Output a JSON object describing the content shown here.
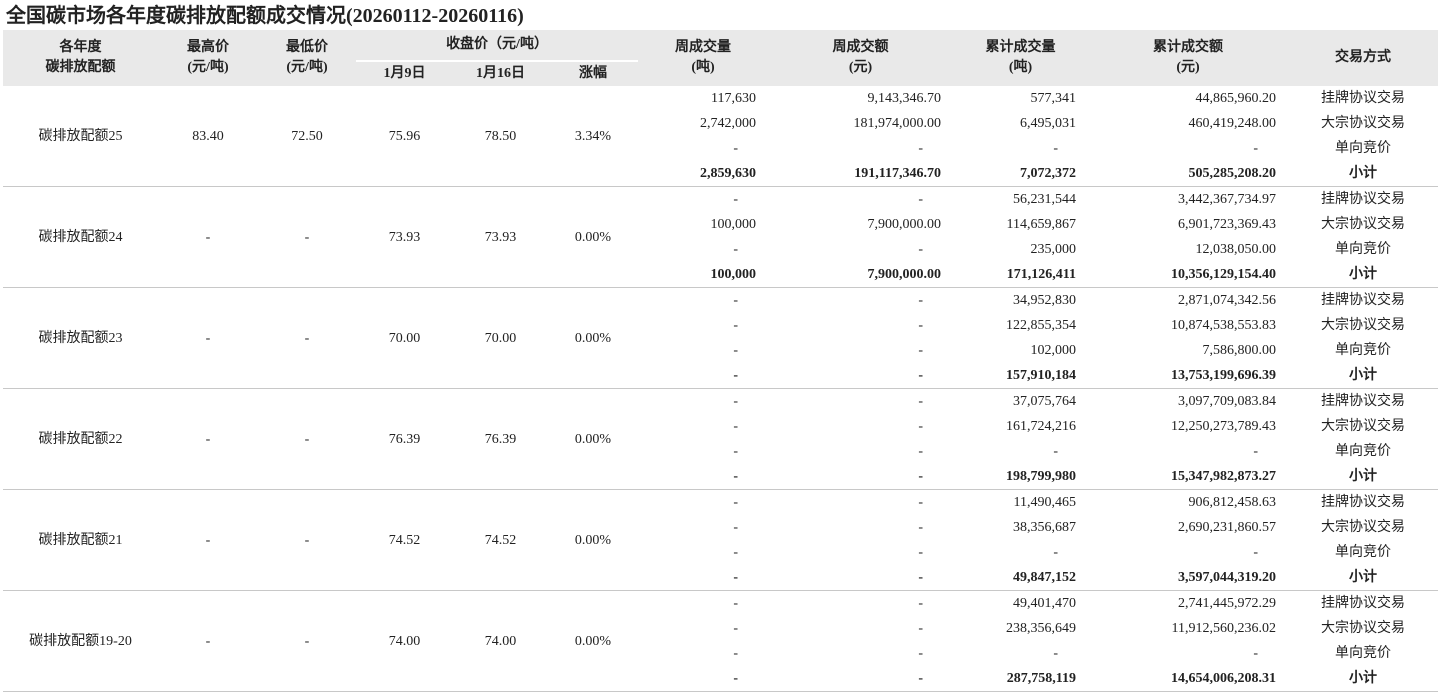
{
  "title": "全国碳市场各年度碳排放配额成交情况(20260112-20260116)",
  "table": {
    "header": {
      "year": [
        "各年度",
        "碳排放配额"
      ],
      "high": [
        "最高价",
        "(元/吨)"
      ],
      "low": [
        "最低价",
        "(元/吨)"
      ],
      "close": "收盘价（元/吨）",
      "close_sub": [
        "1月9日",
        "1月16日",
        "涨幅"
      ],
      "week_volume": [
        "周成交量",
        "(吨)"
      ],
      "week_amount": [
        "周成交额",
        "(元)"
      ],
      "cum_volume": [
        "累计成交量",
        "(吨)"
      ],
      "cum_amount": [
        "累计成交额",
        "(元)"
      ],
      "method": "交易方式"
    },
    "groups": [
      {
        "name": "碳排放配额25",
        "high": "83.40",
        "low": "72.50",
        "close_jan9": "75.96",
        "close_jan16": "78.50",
        "change": "3.34%",
        "rows": [
          [
            "117,630",
            "9,143,346.70",
            "577,341",
            "44,865,960.20",
            "挂牌协议交易"
          ],
          [
            "2,742,000",
            "181,974,000.00",
            "6,495,031",
            "460,419,248.00",
            "大宗协议交易"
          ],
          [
            "-",
            "-",
            "-",
            "-",
            "单向竞价"
          ],
          [
            "2,859,630",
            "191,117,346.70",
            "7,072,372",
            "505,285,208.20",
            "小计"
          ]
        ]
      },
      {
        "name": "碳排放配额24",
        "high": "-",
        "low": "-",
        "close_jan9": "73.93",
        "close_jan16": "73.93",
        "change": "0.00%",
        "rows": [
          [
            "-",
            "-",
            "56,231,544",
            "3,442,367,734.97",
            "挂牌协议交易"
          ],
          [
            "100,000",
            "7,900,000.00",
            "114,659,867",
            "6,901,723,369.43",
            "大宗协议交易"
          ],
          [
            "-",
            "-",
            "235,000",
            "12,038,050.00",
            "单向竞价"
          ],
          [
            "100,000",
            "7,900,000.00",
            "171,126,411",
            "10,356,129,154.40",
            "小计"
          ]
        ]
      },
      {
        "name": "碳排放配额23",
        "high": "-",
        "low": "-",
        "close_jan9": "70.00",
        "close_jan16": "70.00",
        "change": "0.00%",
        "rows": [
          [
            "-",
            "-",
            "34,952,830",
            "2,871,074,342.56",
            "挂牌协议交易"
          ],
          [
            "-",
            "-",
            "122,855,354",
            "10,874,538,553.83",
            "大宗协议交易"
          ],
          [
            "-",
            "-",
            "102,000",
            "7,586,800.00",
            "单向竞价"
          ],
          [
            "-",
            "-",
            "157,910,184",
            "13,753,199,696.39",
            "小计"
          ]
        ]
      },
      {
        "name": "碳排放配额22",
        "high": "-",
        "low": "-",
        "close_jan9": "76.39",
        "close_jan16": "76.39",
        "change": "0.00%",
        "rows": [
          [
            "-",
            "-",
            "37,075,764",
            "3,097,709,083.84",
            "挂牌协议交易"
          ],
          [
            "-",
            "-",
            "161,724,216",
            "12,250,273,789.43",
            "大宗协议交易"
          ],
          [
            "-",
            "-",
            "-",
            "-",
            "单向竞价"
          ],
          [
            "-",
            "-",
            "198,799,980",
            "15,347,982,873.27",
            "小计"
          ]
        ]
      },
      {
        "name": "碳排放配额21",
        "high": "-",
        "low": "-",
        "close_jan9": "74.52",
        "close_jan16": "74.52",
        "change": "0.00%",
        "rows": [
          [
            "-",
            "-",
            "11,490,465",
            "906,812,458.63",
            "挂牌协议交易"
          ],
          [
            "-",
            "-",
            "38,356,687",
            "2,690,231,860.57",
            "大宗协议交易"
          ],
          [
            "-",
            "-",
            "-",
            "-",
            "单向竞价"
          ],
          [
            "-",
            "-",
            "49,847,152",
            "3,597,044,319.20",
            "小计"
          ]
        ]
      },
      {
        "name": "碳排放配额19-20",
        "high": "-",
        "low": "-",
        "close_jan9": "74.00",
        "close_jan16": "74.00",
        "change": "0.00%",
        "rows": [
          [
            "-",
            "-",
            "49,401,470",
            "2,741,445,972.29",
            "挂牌协议交易"
          ],
          [
            "-",
            "-",
            "238,356,649",
            "11,912,560,236.02",
            "大宗协议交易"
          ],
          [
            "-",
            "-",
            "-",
            "-",
            "单向竞价"
          ],
          [
            "-",
            "-",
            "287,758,119",
            "14,654,006,208.31",
            "小计"
          ]
        ]
      }
    ]
  }
}
